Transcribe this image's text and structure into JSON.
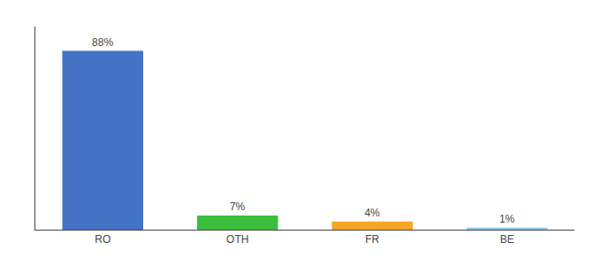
{
  "chart_data": {
    "type": "bar",
    "categories": [
      "RO",
      "OTH",
      "FR",
      "BE"
    ],
    "values": [
      88,
      7,
      4,
      1
    ],
    "value_labels": [
      "88%",
      "7%",
      "4%",
      "1%"
    ],
    "data_labels": true,
    "colors": [
      "#4472c4",
      "#3dbf3d",
      "#f5a623",
      "#85c8ea"
    ],
    "ylim": [
      0,
      100
    ],
    "tick_labels": "x",
    "grid": false
  }
}
